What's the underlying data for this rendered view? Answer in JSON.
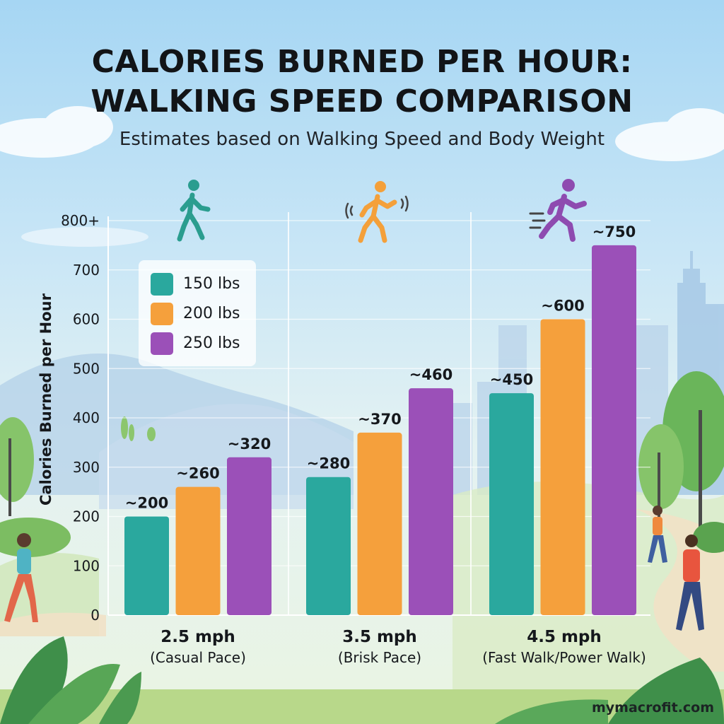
{
  "header": {
    "title_line1": "CALORIES BURNED PER HOUR:",
    "title_line2": "WALKING SPEED COMPARISON",
    "subtitle": "Estimates based on Walking Speed and Body Weight"
  },
  "chart_data": {
    "type": "bar",
    "ylabel": "Calories Burned per Hour",
    "ylim": [
      0,
      800
    ],
    "y_ticks": [
      {
        "value": 0,
        "label": "0"
      },
      {
        "value": 100,
        "label": "100"
      },
      {
        "value": 200,
        "label": "200"
      },
      {
        "value": 300,
        "label": "300"
      },
      {
        "value": 400,
        "label": "400"
      },
      {
        "value": 500,
        "label": "500"
      },
      {
        "value": 600,
        "label": "600"
      },
      {
        "value": 700,
        "label": "700"
      },
      {
        "value": 800,
        "label": "800+"
      }
    ],
    "grid": true,
    "legend_position": "top-left",
    "categories": [
      {
        "name": "2.5 mph",
        "note": "(Casual Pace)",
        "icon": "walking-person-icon",
        "icon_color": "#2a9d8f"
      },
      {
        "name": "3.5 mph",
        "note": "(Brisk Pace)",
        "icon": "brisk-walking-person-icon",
        "icon_color": "#f4a03a"
      },
      {
        "name": "4.5 mph",
        "note": "(Fast Walk/Power Walk)",
        "icon": "power-walking-person-icon",
        "icon_color": "#8e4bb0"
      }
    ],
    "series": [
      {
        "name": "150 lbs",
        "color": "#2aa89e",
        "values": [
          200,
          280,
          450
        ],
        "labels": [
          "~200",
          "~280",
          "~450"
        ]
      },
      {
        "name": "200 lbs",
        "color": "#f5a03c",
        "values": [
          260,
          370,
          600
        ],
        "labels": [
          "~260",
          "~370",
          "~600"
        ]
      },
      {
        "name": "250 lbs",
        "color": "#9b50b8",
        "values": [
          320,
          460,
          750
        ],
        "labels": [
          "~320",
          "~460",
          "~750"
        ]
      }
    ]
  },
  "footer": {
    "site": "mymacrofit.com"
  }
}
